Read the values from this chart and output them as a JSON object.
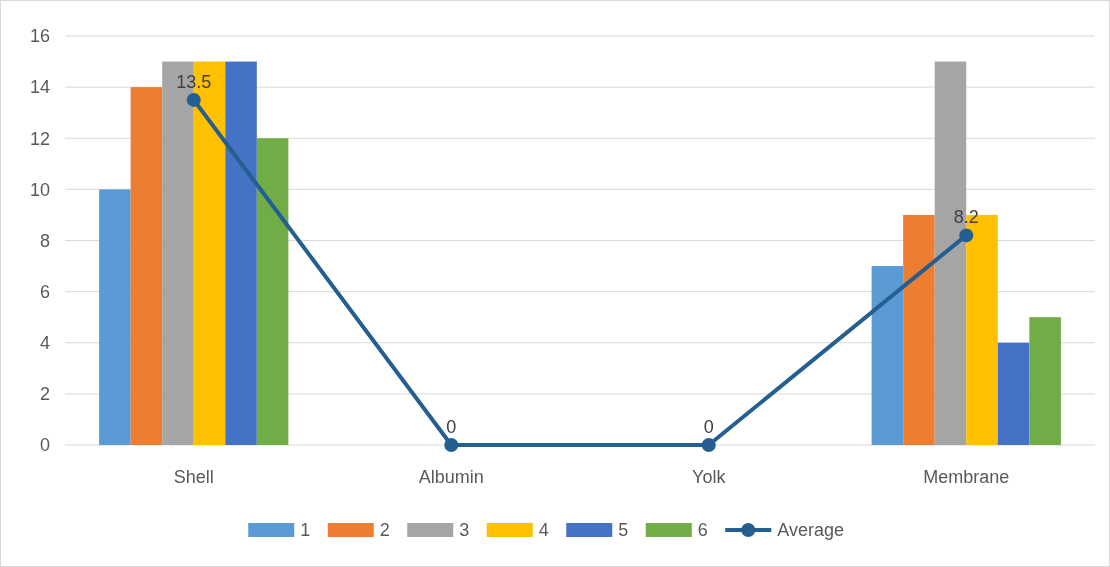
{
  "chart_data": {
    "type": "bar",
    "categories": [
      "Shell",
      "Albumin",
      "Yolk",
      "Membrane"
    ],
    "series": [
      {
        "name": "1",
        "color": "#5b9bd5",
        "values": [
          10,
          0,
          0,
          7
        ]
      },
      {
        "name": "2",
        "color": "#ed7d31",
        "values": [
          14,
          0,
          0,
          9
        ]
      },
      {
        "name": "3",
        "color": "#a5a5a5",
        "values": [
          15,
          0,
          0,
          15
        ]
      },
      {
        "name": "4",
        "color": "#ffc000",
        "values": [
          15,
          0,
          0,
          9
        ]
      },
      {
        "name": "5",
        "color": "#4472c4",
        "values": [
          15,
          0,
          0,
          4
        ]
      },
      {
        "name": "6",
        "color": "#70ad47",
        "values": [
          12,
          0,
          0,
          5
        ]
      },
      {
        "name": "Average",
        "type": "line",
        "color": "#255e91",
        "marker": "circle",
        "values": [
          13.5,
          0,
          0,
          8.2
        ],
        "value_labels": [
          "13.5",
          "0",
          "0",
          "8.2"
        ]
      }
    ],
    "ylim": [
      0,
      16
    ],
    "yticks": [
      0,
      2,
      4,
      6,
      8,
      10,
      12,
      14,
      16
    ],
    "grid": "y",
    "legend": "bottom"
  }
}
